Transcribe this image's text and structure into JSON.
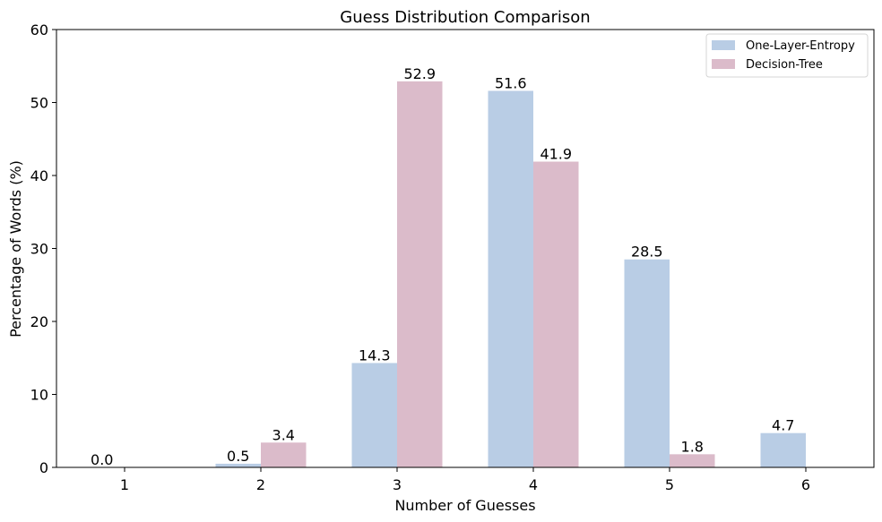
{
  "chart_data": {
    "type": "bar",
    "title": "Guess Distribution Comparison",
    "xlabel": "Number of Guesses",
    "ylabel": "Percentage of Words (%)",
    "categories": [
      "1",
      "2",
      "3",
      "4",
      "5",
      "6"
    ],
    "ylim": [
      0,
      60
    ],
    "yticks": [
      "0",
      "10",
      "20",
      "30",
      "40",
      "50",
      "60"
    ],
    "grid": false,
    "legend_position": "top-right",
    "series": [
      {
        "name": "One-Layer-Entropy",
        "color": "#b9cde5",
        "values": [
          0.0,
          0.5,
          14.3,
          51.6,
          28.5,
          4.7
        ],
        "labels": [
          "0.0",
          "0.5",
          "14.3",
          "51.6",
          "28.5",
          "4.7"
        ]
      },
      {
        "name": "Decision-Tree",
        "color": "#dbbbca",
        "values": [
          null,
          3.4,
          52.9,
          41.9,
          1.8,
          null
        ],
        "labels": [
          "",
          "3.4",
          "52.9",
          "41.9",
          "1.8",
          ""
        ]
      }
    ]
  }
}
